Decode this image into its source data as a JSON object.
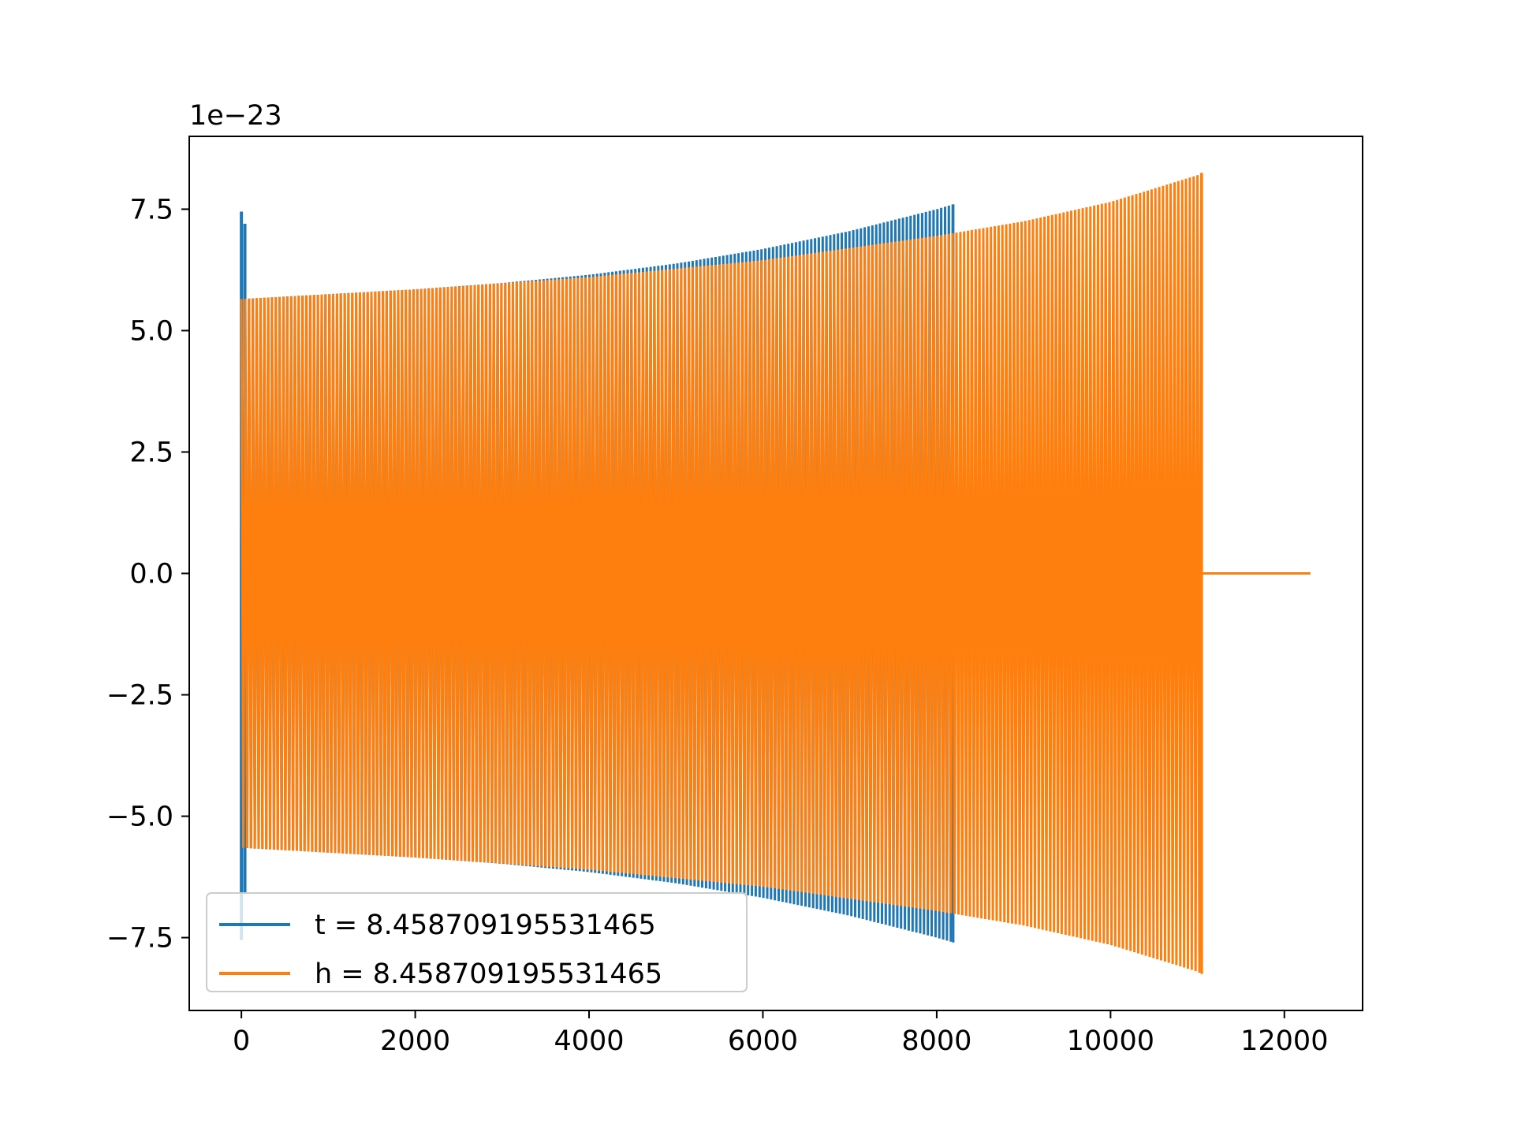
{
  "chart_data": {
    "type": "line",
    "title": "",
    "xlabel": "",
    "ylabel": "",
    "y_offset_label": "1e−23",
    "y_scale": 1e-23,
    "xlim": [
      -600,
      12900
    ],
    "ylim": [
      -9.0,
      9.0
    ],
    "x_ticks": [
      0,
      2000,
      4000,
      6000,
      8000,
      10000,
      12000
    ],
    "y_ticks": [
      -7.5,
      -5.0,
      -2.5,
      0.0,
      2.5,
      5.0,
      7.5
    ],
    "x_tick_labels": [
      "0",
      "2000",
      "4000",
      "6000",
      "8000",
      "10000",
      "12000"
    ],
    "y_tick_labels": [
      "−7.5",
      "−5.0",
      "−2.5",
      "0.0",
      "2.5",
      "5.0",
      "7.5"
    ],
    "grid": false,
    "legend_position": "lower-left",
    "series": [
      {
        "name": "t = 8.458709195531465",
        "color": "#1f77b4",
        "style": "dense-oscillation",
        "x_start": 0,
        "x_end": 8190,
        "spike": {
          "x": [
            0,
            40
          ],
          "max": [
            7.45,
            7.2
          ],
          "min": [
            -7.55,
            -6.6
          ]
        },
        "envelope": [
          {
            "x": 0,
            "amp": 5.65
          },
          {
            "x": 1000,
            "amp": 5.75
          },
          {
            "x": 2000,
            "amp": 5.85
          },
          {
            "x": 3000,
            "amp": 5.98
          },
          {
            "x": 4000,
            "amp": 6.15
          },
          {
            "x": 5000,
            "amp": 6.38
          },
          {
            "x": 6000,
            "amp": 6.68
          },
          {
            "x": 7000,
            "amp": 7.05
          },
          {
            "x": 8000,
            "amp": 7.5
          },
          {
            "x": 8190,
            "amp": 7.6
          }
        ]
      },
      {
        "name": "h = 8.458709195531465",
        "color": "#ff7f0e",
        "style": "dense-oscillation",
        "x_start": 0,
        "x_end": 11050,
        "tail": {
          "x": [
            11050,
            12300
          ],
          "value": 0.0
        },
        "envelope": [
          {
            "x": 0,
            "amp": 5.65
          },
          {
            "x": 2000,
            "amp": 5.85
          },
          {
            "x": 4000,
            "amp": 6.1
          },
          {
            "x": 6000,
            "amp": 6.45
          },
          {
            "x": 8000,
            "amp": 6.95
          },
          {
            "x": 9000,
            "amp": 7.25
          },
          {
            "x": 10000,
            "amp": 7.65
          },
          {
            "x": 11000,
            "amp": 8.2
          },
          {
            "x": 11050,
            "amp": 8.25
          }
        ]
      }
    ]
  }
}
